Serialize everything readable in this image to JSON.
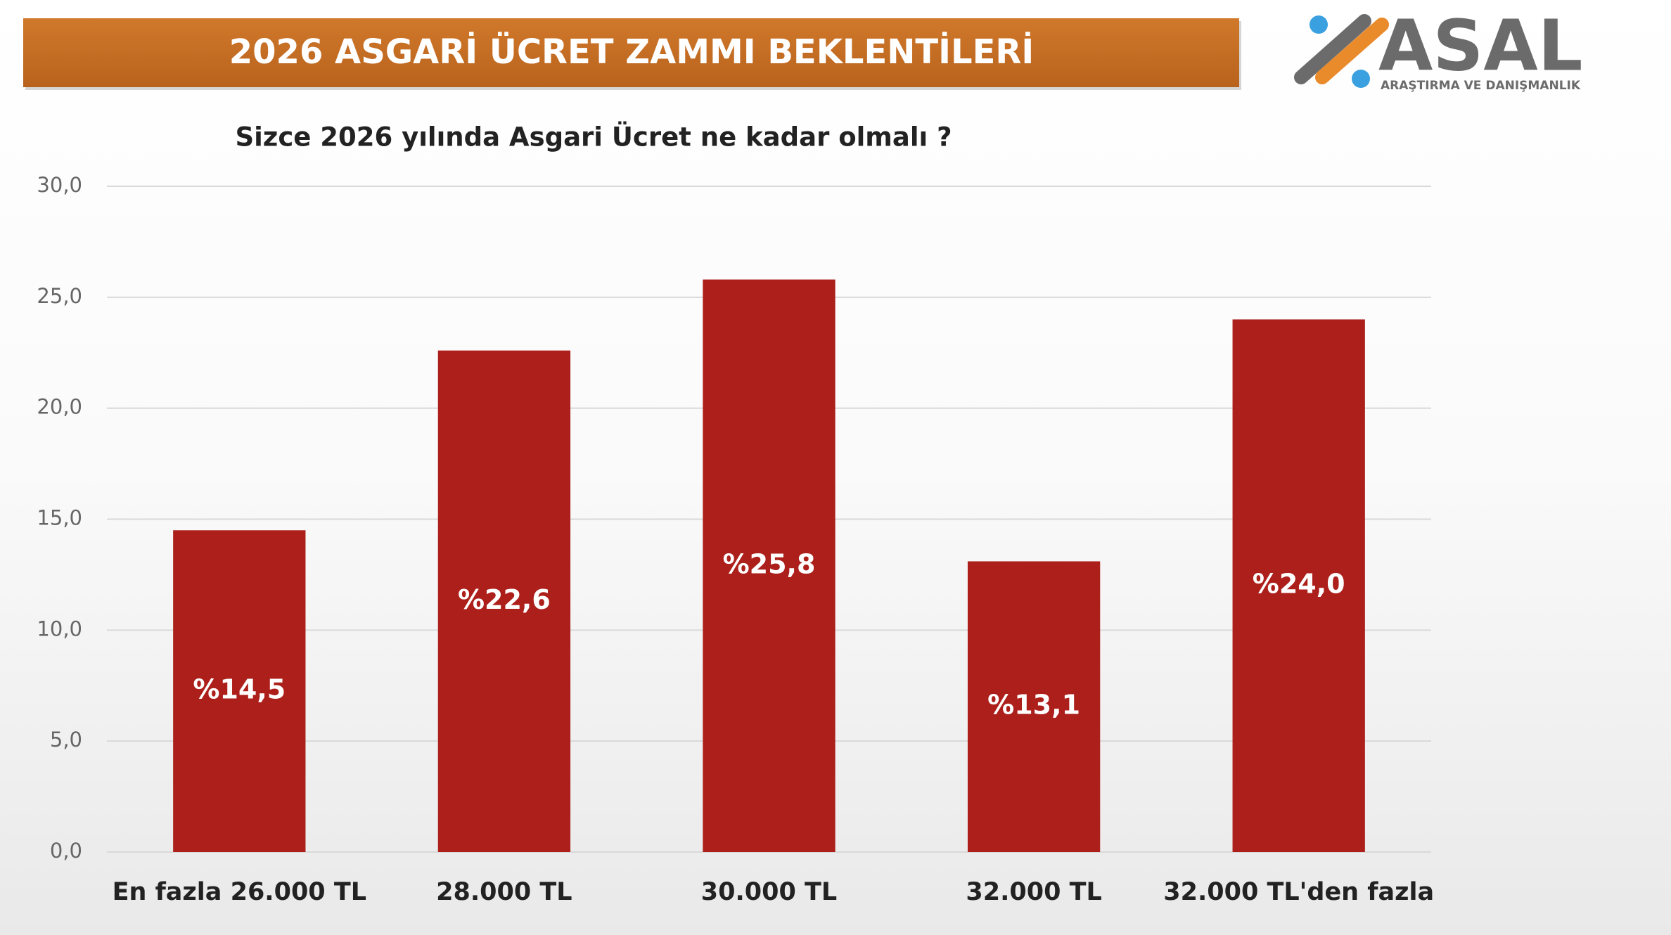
{
  "logo": {
    "name": "ASAL",
    "tagline": "ARAŞTIRMA VE DANIŞMANLIK"
  },
  "chart_data": {
    "type": "bar",
    "title": "2026 ASGARİ ÜCRET ZAMMI BEKLENTİLERİ",
    "subtitle": "Sizce 2026 yılında Asgari Ücret ne kadar olmalı ?",
    "categories": [
      "En fazla 26.000 TL",
      "28.000 TL",
      "30.000 TL",
      "32.000 TL",
      "32.000 TL'den fazla"
    ],
    "values": [
      14.5,
      22.6,
      25.8,
      13.1,
      24.0
    ],
    "value_labels": [
      "%14,5",
      "%22,6",
      "%25,8",
      "%13,1",
      "%24,0"
    ],
    "color": "#ac1f1a",
    "ylim": [
      0,
      30
    ],
    "yticks": [
      {
        "value": 0,
        "label": "0,0"
      },
      {
        "value": 5,
        "label": "5,0"
      },
      {
        "value": 10,
        "label": "10,0"
      },
      {
        "value": 15,
        "label": "15,0"
      },
      {
        "value": 20,
        "label": "20,0"
      },
      {
        "value": 25,
        "label": "25,0"
      },
      {
        "value": 30,
        "label": "30,0"
      }
    ],
    "grid": true
  }
}
